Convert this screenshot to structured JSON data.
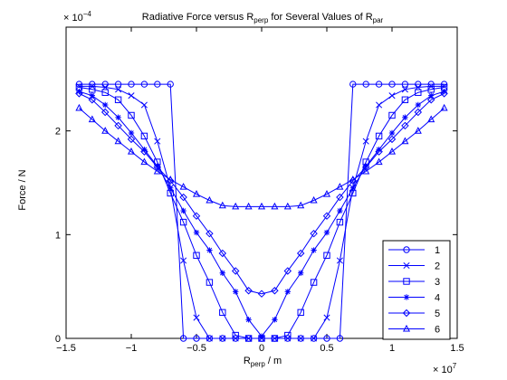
{
  "chart_data": {
    "type": "line",
    "title_parts": [
      "Radiative Force versus R",
      "perp",
      " for Several Values of R",
      "par"
    ],
    "xlabel_parts": [
      "R",
      "perp",
      " / m"
    ],
    "ylabel": "Force / N",
    "x_exponent": "× 10",
    "x_exponent_power": "7",
    "y_exponent": "× 10",
    "y_exponent_power": "−4",
    "xlim": [
      -15000000,
      15000000
    ],
    "ylim": [
      0,
      0.0003
    ],
    "xtick_labels": [
      "−1.5",
      "−1",
      "−0.5",
      "0",
      "0.5",
      "1",
      "1.5"
    ],
    "ytick_labels": [
      "0",
      "1",
      "2"
    ],
    "legend_position": "bottom-right",
    "color": "#0000ff",
    "x": [
      -14000000,
      -13000000,
      -12000000,
      -11000000,
      -10000000,
      -9000000,
      -8000000,
      -7000000,
      -6000000,
      -5000000,
      -4000000,
      -3000000,
      -2000000,
      -1000000,
      0,
      1000000,
      2000000,
      3000000,
      4000000,
      5000000,
      6000000,
      7000000,
      8000000,
      9000000,
      10000000,
      11000000,
      12000000,
      13000000,
      14000000
    ],
    "series": [
      {
        "name": "1",
        "marker": "circle",
        "values": [
          0.000245,
          0.000245,
          0.000245,
          0.000245,
          0.000245,
          0.000245,
          0.000245,
          0.000245,
          0,
          0,
          0,
          0,
          0,
          0,
          0,
          0,
          0,
          0,
          0,
          0,
          0,
          0.000245,
          0.000245,
          0.000245,
          0.000245,
          0.000245,
          0.000245,
          0.000245,
          0.000245
        ]
      },
      {
        "name": "2",
        "marker": "x",
        "values": [
          0.000243,
          0.000243,
          0.000242,
          0.00024,
          0.000234,
          0.000225,
          0.00019,
          0.000145,
          7.5e-05,
          2e-05,
          0,
          0,
          0,
          0,
          0,
          0,
          0,
          0,
          0,
          2e-05,
          7.5e-05,
          0.000145,
          0.00019,
          0.000225,
          0.000234,
          0.00024,
          0.000242,
          0.000243,
          0.000243
        ]
      },
      {
        "name": "3",
        "marker": "square",
        "values": [
          0.000242,
          0.00024,
          0.000237,
          0.00023,
          0.000215,
          0.000195,
          0.00017,
          0.00014,
          0.000112,
          8e-05,
          5.4e-05,
          2.5e-05,
          3e-06,
          0,
          0,
          0,
          3e-06,
          2.5e-05,
          5.4e-05,
          8e-05,
          0.000112,
          0.00014,
          0.00017,
          0.000195,
          0.000215,
          0.00023,
          0.000237,
          0.00024,
          0.000242
        ]
      },
      {
        "name": "4",
        "marker": "asterisk",
        "values": [
          0.000238,
          0.000234,
          0.000225,
          0.000213,
          0.000198,
          0.000182,
          0.000166,
          0.000145,
          0.000123,
          0.000102,
          8.5e-05,
          6.3e-05,
          4.5e-05,
          1.8e-05,
          2e-06,
          1.8e-05,
          4.5e-05,
          6.3e-05,
          8.5e-05,
          0.000102,
          0.000123,
          0.000145,
          0.000166,
          0.000182,
          0.000198,
          0.000213,
          0.000225,
          0.000234,
          0.000238
        ]
      },
      {
        "name": "5",
        "marker": "diamond",
        "values": [
          0.000236,
          0.00023,
          0.000218,
          0.000205,
          0.000192,
          0.00018,
          0.000165,
          0.000152,
          0.000136,
          0.000118,
          0.000101,
          8.2e-05,
          6.5e-05,
          4.6e-05,
          4.3e-05,
          4.6e-05,
          6.5e-05,
          8.2e-05,
          0.000101,
          0.000118,
          0.000136,
          0.000152,
          0.000165,
          0.00018,
          0.000192,
          0.000205,
          0.000218,
          0.00023,
          0.000236
        ]
      },
      {
        "name": "6",
        "marker": "triangle",
        "values": [
          0.000222,
          0.000211,
          0.0002,
          0.00019,
          0.00018,
          0.00017,
          0.000161,
          0.000153,
          0.000146,
          0.000139,
          0.000133,
          0.000128,
          0.000127,
          0.000127,
          0.000127,
          0.000127,
          0.000127,
          0.000128,
          0.000133,
          0.000139,
          0.000146,
          0.000153,
          0.000161,
          0.00017,
          0.00018,
          0.00019,
          0.0002,
          0.000211,
          0.000222
        ]
      }
    ]
  }
}
